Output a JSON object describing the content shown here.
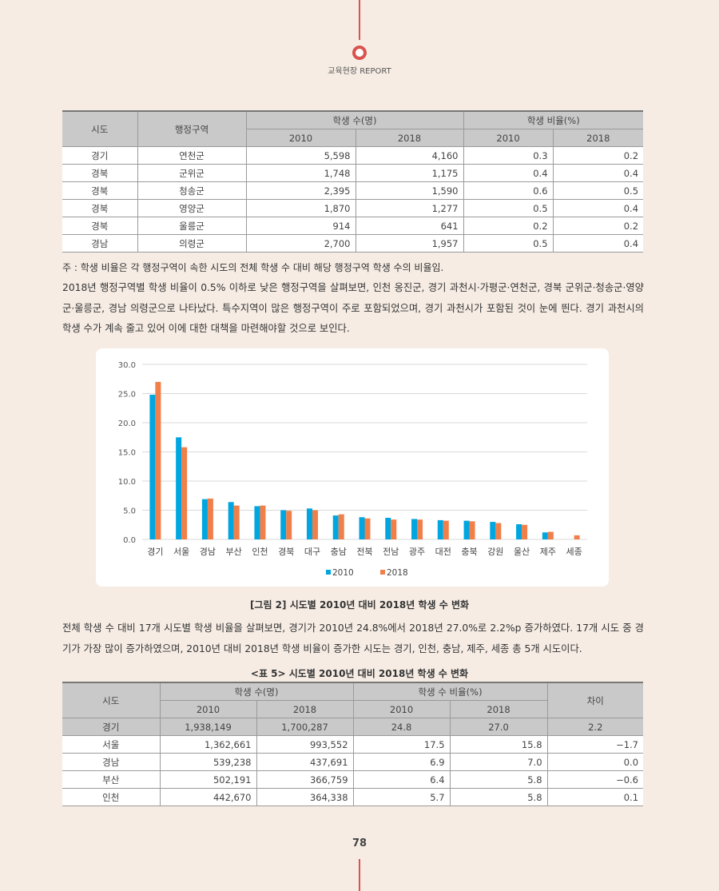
{
  "header": {
    "label": "교육현장 REPORT"
  },
  "table1": {
    "headers": [
      "시도",
      "행정구역",
      "학생 수(명)",
      "학생 비율(%)"
    ],
    "years": [
      "2010",
      "2018",
      "2010",
      "2018"
    ],
    "rows": [
      [
        "경기",
        "연천군",
        "5,598",
        "4,160",
        "0.3",
        "0.2"
      ],
      [
        "경북",
        "군위군",
        "1,748",
        "1,175",
        "0.4",
        "0.4"
      ],
      [
        "경북",
        "청송군",
        "2,395",
        "1,590",
        "0.6",
        "0.5"
      ],
      [
        "경북",
        "영양군",
        "1,870",
        "1,277",
        "0.5",
        "0.4"
      ],
      [
        "경북",
        "울릉군",
        "914",
        "641",
        "0.2",
        "0.2"
      ],
      [
        "경남",
        "의령군",
        "2,700",
        "1,957",
        "0.5",
        "0.4"
      ]
    ]
  },
  "note": "주 : 학생 비율은 각 행정구역이 속한 시도의 전체 학생 수 대비 해당 행정구역 학생 수의 비율임.",
  "paragraph1": "2018년 행정구역별 학생 비율이 0.5% 이하로 낮은 행정구역을 살펴보면, 인천 옹진군, 경기 과천시·가평군·연천군, 경북 군위군·청송군·영양군·울릉군, 경남 의령군으로 나타났다. 특수지역이 많은 행정구역이 주로 포함되었으며, 경기 과천시가 포함된 것이 눈에 띈다. 경기 과천시의 학생 수가 계속 줄고 있어 이에 대한 대책을 마련해야할 것으로 보인다.",
  "chart_data": {
    "type": "bar",
    "categories": [
      "경기",
      "서울",
      "경남",
      "부산",
      "인천",
      "경북",
      "대구",
      "충남",
      "전북",
      "전남",
      "광주",
      "대전",
      "충북",
      "강원",
      "울산",
      "제주",
      "세종"
    ],
    "series": [
      {
        "name": "2010",
        "color": "#00a6e0",
        "values": [
          24.8,
          17.5,
          6.9,
          6.4,
          5.7,
          5.0,
          5.3,
          4.1,
          3.8,
          3.7,
          3.5,
          3.3,
          3.2,
          3.0,
          2.6,
          1.2,
          null
        ]
      },
      {
        "name": "2018",
        "color": "#f07f4a",
        "values": [
          27.0,
          15.8,
          7.0,
          5.8,
          5.8,
          4.9,
          5.0,
          4.3,
          3.6,
          3.4,
          3.4,
          3.2,
          3.1,
          2.8,
          2.5,
          1.3,
          0.7
        ]
      }
    ],
    "ylim": [
      0,
      30
    ],
    "yticks": [
      {
        "value": 0,
        "label": "0.0"
      },
      {
        "value": 5,
        "label": "5.0"
      },
      {
        "value": 10,
        "label": "10.0"
      },
      {
        "value": 15,
        "label": "15.0"
      },
      {
        "value": 20,
        "label": "20.0"
      },
      {
        "value": 25,
        "label": "25.0"
      },
      {
        "value": 30,
        "label": "30.0"
      }
    ],
    "grid": true,
    "legend": "bottom"
  },
  "figure_caption": "[그림 2] 시도별 2010년 대비 2018년 학생 수 변화",
  "paragraph2": "전체 학생 수 대비 17개 시도별 학생 비율을 살펴보면, 경기가 2010년 24.8%에서 2018년 27.0%로 2.2%p 증가하였다. 17개 시도 중 경기가 가장 많이 증가하였으며, 2010년 대비 2018년 학생 비율이 증가한 시도는 경기, 인천, 충남, 제주, 세종 총 5개 시도이다.",
  "table2": {
    "caption": "<표 5> 시도별 2010년 대비 2018년 학생 수 변화",
    "headers": [
      "시도",
      "학생 수(명)",
      "학생 수 비율(%)",
      "차이"
    ],
    "years": [
      "2010",
      "2018",
      "2010",
      "2018"
    ],
    "rows": [
      [
        "경기",
        "1,938,149",
        "1,700,287",
        "24.8",
        "27.0",
        "2.2"
      ],
      [
        "서울",
        "1,362,661",
        "993,552",
        "17.5",
        "15.8",
        "−1.7"
      ],
      [
        "경남",
        "539,238",
        "437,691",
        "6.9",
        "7.0",
        "0.0"
      ],
      [
        "부산",
        "502,191",
        "366,759",
        "6.4",
        "5.8",
        "−0.6"
      ],
      [
        "인천",
        "442,670",
        "364,338",
        "5.7",
        "5.8",
        "0.1"
      ]
    ]
  },
  "page_number": "78"
}
